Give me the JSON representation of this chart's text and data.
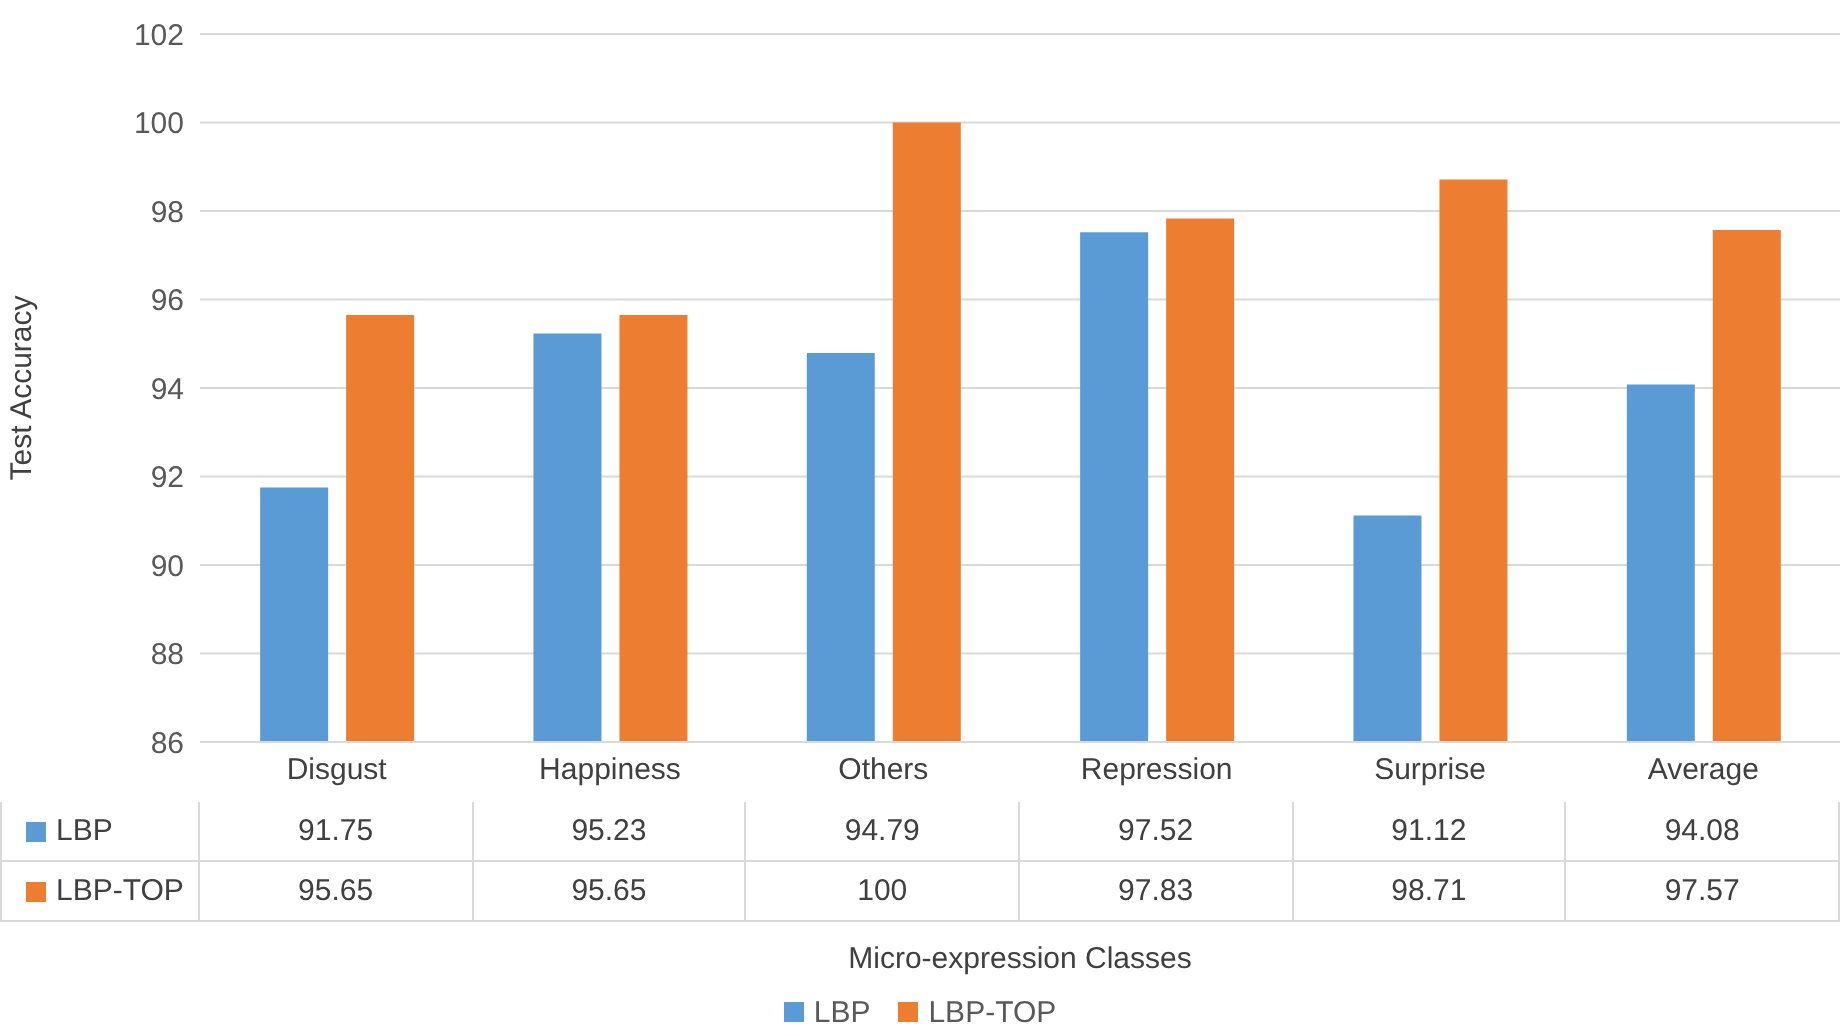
{
  "chart_data": {
    "type": "bar",
    "annotations": [
      "Micro-expression Classes"
    ],
    "ylabel": "Test Accuracy",
    "categories": [
      "Disgust",
      "Happiness",
      "Others",
      "Repression",
      "Surprise",
      "Average"
    ],
    "series": [
      {
        "name": "LBP",
        "color": "#5b9bd5",
        "values": [
          91.75,
          95.23,
          94.79,
          97.52,
          91.12,
          94.08
        ]
      },
      {
        "name": "LBP-TOP",
        "color": "#ed7d31",
        "values": [
          95.65,
          95.65,
          100,
          97.83,
          98.71,
          97.57
        ]
      }
    ],
    "ylim": [
      86,
      102
    ],
    "yticks": [
      86,
      88,
      90,
      92,
      94,
      96,
      98,
      100,
      102
    ],
    "grid": "y",
    "legend": "bottom",
    "data_labels": true
  }
}
